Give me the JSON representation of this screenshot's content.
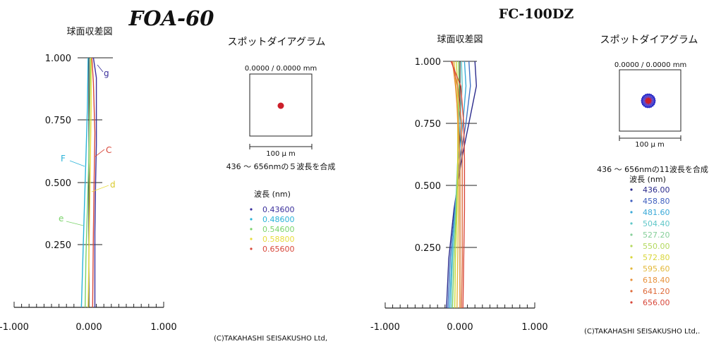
{
  "chart_data": [
    {
      "type": "line",
      "title": "FOA-60",
      "subtitle": "球面収差図",
      "xlim": [
        -1.0,
        1.0
      ],
      "ylim": [
        0,
        1.0
      ],
      "x_tick_labels": [
        "-1.000",
        "0.000",
        "1.000"
      ],
      "y_tick_labels": [
        "0.250",
        "0.500",
        "0.750",
        "1.000"
      ],
      "series": [
        {
          "name": "g",
          "color": "#3a2f9c",
          "points": [
            [
              0.08,
              0
            ],
            [
              0.08,
              0.15
            ],
            [
              0.08,
              0.3
            ],
            [
              0.09,
              0.5
            ],
            [
              0.1,
              0.65
            ],
            [
              0.1,
              0.8
            ],
            [
              0.1,
              0.92
            ],
            [
              0.06,
              1.0
            ]
          ]
        },
        {
          "name": "F",
          "color": "#2ab3d8",
          "points": [
            [
              -0.1,
              0
            ],
            [
              -0.08,
              0.2
            ],
            [
              -0.06,
              0.4
            ],
            [
              -0.04,
              0.6
            ],
            [
              -0.02,
              0.8
            ],
            [
              -0.01,
              1.0
            ]
          ]
        },
        {
          "name": "e",
          "color": "#7ad36a",
          "points": [
            [
              -0.05,
              0
            ],
            [
              -0.04,
              0.2
            ],
            [
              -0.02,
              0.4
            ],
            [
              0.0,
              0.6
            ],
            [
              0.01,
              0.8
            ],
            [
              0.02,
              1.0
            ]
          ]
        },
        {
          "name": "d",
          "color": "#e8dc3c",
          "points": [
            [
              -0.01,
              0
            ],
            [
              0.0,
              0.2
            ],
            [
              0.01,
              0.4
            ],
            [
              0.02,
              0.6
            ],
            [
              0.03,
              0.8
            ],
            [
              0.03,
              1.0
            ]
          ]
        },
        {
          "name": "C",
          "color": "#d8473a",
          "points": [
            [
              0.05,
              0
            ],
            [
              0.06,
              0.3
            ],
            [
              0.07,
              0.5
            ],
            [
              0.08,
              0.7
            ],
            [
              0.06,
              0.9
            ],
            [
              0.04,
              1.0
            ]
          ]
        }
      ],
      "annotations": [
        "g",
        "C",
        "F",
        "d",
        "e"
      ]
    },
    {
      "type": "scatter",
      "title": "スポットダイアグラム",
      "header": "0.0000 / 0.0000 mm",
      "scale_label": "100 μ m",
      "caption": "436 ～ 656nmの５波長を合成",
      "legend_title": "波長 (nm)",
      "legend": [
        {
          "label": "0.43600",
          "color": "#3a2f9c"
        },
        {
          "label": "0.48600",
          "color": "#2ab3d8"
        },
        {
          "label": "0.54600",
          "color": "#7ad36a"
        },
        {
          "label": "0.58800",
          "color": "#e8dc3c"
        },
        {
          "label": "0.65600",
          "color": "#d8473a"
        }
      ],
      "spot_color": "#cc1f2a"
    },
    {
      "type": "line",
      "title": "FC-100DZ",
      "subtitle": "球面収差図",
      "xlim": [
        -1.0,
        1.0
      ],
      "ylim": [
        0,
        1.0
      ],
      "x_tick_labels": [
        "-1.000",
        "0.000",
        "1.000"
      ],
      "y_tick_labels": [
        "0.250",
        "0.500",
        "0.750",
        "1.000"
      ],
      "series": [
        {
          "color": "#2a2a8c",
          "points": [
            [
              -0.18,
              0
            ],
            [
              -0.15,
              0.2
            ],
            [
              -0.08,
              0.4
            ],
            [
              0.02,
              0.6
            ],
            [
              0.12,
              0.75
            ],
            [
              0.22,
              0.9
            ],
            [
              0.2,
              1.0
            ]
          ]
        },
        {
          "color": "#3f72c4",
          "points": [
            [
              -0.16,
              0
            ],
            [
              -0.13,
              0.2
            ],
            [
              -0.07,
              0.4
            ],
            [
              0.0,
              0.6
            ],
            [
              0.08,
              0.75
            ],
            [
              0.14,
              0.9
            ],
            [
              0.12,
              1.0
            ]
          ]
        },
        {
          "color": "#3aa9d8",
          "points": [
            [
              -0.14,
              0
            ],
            [
              -0.11,
              0.2
            ],
            [
              -0.06,
              0.4
            ],
            [
              -0.02,
              0.6
            ],
            [
              0.04,
              0.75
            ],
            [
              0.08,
              0.9
            ],
            [
              0.06,
              1.0
            ]
          ]
        },
        {
          "color": "#5fc7c8",
          "points": [
            [
              -0.12,
              0
            ],
            [
              -0.1,
              0.2
            ],
            [
              -0.06,
              0.4
            ],
            [
              -0.03,
              0.6
            ],
            [
              0.0,
              0.75
            ],
            [
              0.03,
              0.9
            ],
            [
              0.02,
              1.0
            ]
          ]
        },
        {
          "color": "#86cf5e",
          "points": [
            [
              -0.1,
              0
            ],
            [
              -0.08,
              0.2
            ],
            [
              -0.05,
              0.4
            ],
            [
              -0.03,
              0.6
            ],
            [
              -0.02,
              0.75
            ],
            [
              -0.01,
              0.9
            ],
            [
              -0.02,
              1.0
            ]
          ]
        },
        {
          "color": "#c9d93a",
          "points": [
            [
              -0.07,
              0
            ],
            [
              -0.06,
              0.2
            ],
            [
              -0.04,
              0.4
            ],
            [
              -0.03,
              0.6
            ],
            [
              -0.03,
              0.75
            ],
            [
              -0.03,
              0.9
            ],
            [
              -0.05,
              1.0
            ]
          ]
        },
        {
          "color": "#e3b83a",
          "points": [
            [
              -0.04,
              0
            ],
            [
              -0.03,
              0.2
            ],
            [
              -0.02,
              0.4
            ],
            [
              -0.02,
              0.6
            ],
            [
              -0.03,
              0.75
            ],
            [
              -0.05,
              0.9
            ],
            [
              -0.08,
              1.0
            ]
          ]
        },
        {
          "color": "#e8913a",
          "points": [
            [
              0.0,
              0
            ],
            [
              0.0,
              0.2
            ],
            [
              0.0,
              0.4
            ],
            [
              0.0,
              0.6
            ],
            [
              -0.02,
              0.75
            ],
            [
              -0.06,
              0.9
            ],
            [
              -0.1,
              1.0
            ]
          ]
        },
        {
          "color": "#de6a3a",
          "points": [
            [
              0.02,
              0
            ],
            [
              0.03,
              0.2
            ],
            [
              0.03,
              0.4
            ],
            [
              0.03,
              0.6
            ],
            [
              0.02,
              0.75
            ],
            [
              -0.03,
              0.9
            ],
            [
              -0.11,
              1.0
            ]
          ]
        },
        {
          "color": "#d8473a",
          "points": [
            [
              0.04,
              0
            ],
            [
              0.05,
              0.2
            ],
            [
              0.06,
              0.4
            ],
            [
              0.06,
              0.6
            ],
            [
              0.05,
              0.75
            ],
            [
              0.01,
              0.9
            ],
            [
              -0.12,
              1.0
            ]
          ]
        }
      ]
    },
    {
      "type": "scatter",
      "title": "スポットダイアグラム",
      "header": "0.0000 / 0.0000 mm",
      "scale_label": "100 μ m",
      "caption": "436 ～ 656nmの11波長を合成",
      "legend_title": "波長 (nm)",
      "legend": [
        {
          "label": "436.00",
          "color": "#2a2a8c"
        },
        {
          "label": "458.80",
          "color": "#3f5fbf"
        },
        {
          "label": "481.60",
          "color": "#3aa9d8"
        },
        {
          "label": "504.40",
          "color": "#5fc7c8"
        },
        {
          "label": "527.20",
          "color": "#86cf9a"
        },
        {
          "label": "550.00",
          "color": "#b3d95e"
        },
        {
          "label": "572.80",
          "color": "#d9d63a"
        },
        {
          "label": "595.60",
          "color": "#e3b83a"
        },
        {
          "label": "618.40",
          "color": "#e8913a"
        },
        {
          "label": "641.20",
          "color": "#de6a3a"
        },
        {
          "label": "656.00",
          "color": "#d8473a"
        }
      ],
      "spot_inner": "#cc1f2a",
      "spot_outer": "#2a2ac8"
    }
  ],
  "footer": {
    "left": "(C)TAKAHASHI SEISAKUSHO Ltd,",
    "right": "(C)TAKAHASHI SEISAKUSHO Ltd,."
  }
}
